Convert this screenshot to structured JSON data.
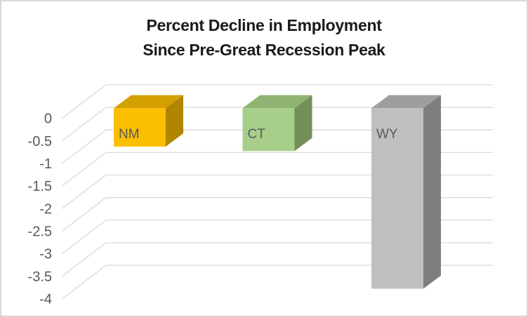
{
  "chart_data": {
    "type": "bar",
    "style": "3d-column",
    "title_lines": [
      "Percent Decline in Employment",
      "Since Pre-Great Recession Peak"
    ],
    "categories": [
      "NM",
      "CT",
      "WY"
    ],
    "values": [
      -0.85,
      -0.95,
      -4.0
    ],
    "series": [
      {
        "name": "Percent decline",
        "values": [
          -0.85,
          -0.95,
          -4.0
        ]
      }
    ],
    "bar_colors": [
      {
        "front": "#FCBE00",
        "top": "#D4A000",
        "side": "#B08500"
      },
      {
        "front": "#A8CE8C",
        "top": "#8FB471",
        "side": "#728F58"
      },
      {
        "front": "#BFBFBF",
        "top": "#9E9E9E",
        "side": "#7E7E7E"
      }
    ],
    "xlabel": "",
    "ylabel": "",
    "ylim": [
      -4,
      0
    ],
    "yticks": [
      0,
      -0.5,
      -1,
      -1.5,
      -2,
      -2.5,
      -3,
      -3.5,
      -4
    ],
    "ytick_labels": [
      "0",
      "-0.5",
      "-1",
      "-1.5",
      "-2",
      "-2.5",
      "-3",
      "-3.5",
      "-4"
    ],
    "grid": true,
    "legend": "none",
    "colors": {
      "title_text": "#1A1A1A",
      "axis_text": "#595959",
      "category_label_text": "#595959",
      "gridline": "#D9D9D9",
      "background": "#FFFFFF",
      "border": "#D8D8D8"
    }
  }
}
